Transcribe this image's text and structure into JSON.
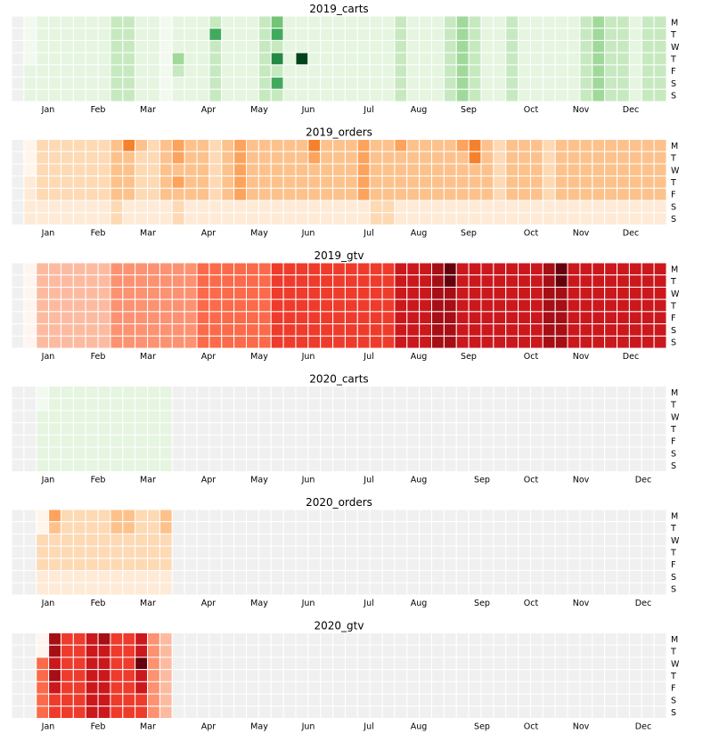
{
  "chart_data": [
    {
      "type": "heatmap",
      "title": "2019_carts",
      "palette": "Greens",
      "colors": [
        "#f2f9ef",
        "#e5f5e0",
        "#c7e9c0",
        "#a1d99b",
        "#74c476",
        "#41ab5d",
        "#238b45",
        "#00441b"
      ],
      "empty_color": "#f0f0f0",
      "x_tick_labels": [
        "Jan",
        "Feb",
        "Mar",
        "Apr",
        "May",
        "Jun",
        "Jul",
        "Aug",
        "Sep",
        "Oct",
        "Nov",
        "Dec"
      ],
      "y_tick_labels": [
        "M",
        "T",
        "W",
        "T",
        "F",
        "S",
        "S"
      ],
      "weeks": 53,
      "first_week_offset": 1,
      "available_weeks": 53,
      "levels_by_week": [
        "0000111",
        "1111111",
        "1111111",
        "1111111",
        "1111111",
        "1111111",
        "1111111",
        "2222222",
        "2222222",
        "1111111",
        "1111111",
        "0000000",
        "1113211",
        "1111111",
        "1111111",
        "2522222",
        "1111111",
        "1111111",
        "1111111",
        "2222222",
        "4526252",
        "1111111",
        "1117111",
        "1111111",
        "1111111",
        "1111111",
        "1111111",
        "1111111",
        "1111111",
        "1111111",
        "2222222",
        "1111111",
        "1111111",
        "1111111",
        "2222222",
        "3333333",
        "2222222",
        "1111111",
        "1111111",
        "2222222",
        "1111111",
        "1111111",
        "1111111",
        "1111111",
        "1111111",
        "2222222",
        "3333333",
        "2222222",
        "2222222",
        "1111111",
        "2222222",
        "2222222",
        "1111111"
      ]
    },
    {
      "type": "heatmap",
      "title": "2019_orders",
      "palette": "Oranges",
      "colors": [
        "#fff5eb",
        "#feead6",
        "#fdd9b4",
        "#fdc28c",
        "#fda35c",
        "#f6812d",
        "#e05810",
        "#a63603",
        "#7f2704"
      ],
      "empty_color": "#f0f0f0",
      "x_tick_labels": [
        "Jan",
        "Feb",
        "Mar",
        "Apr",
        "May",
        "Jun",
        "Jul",
        "Aug",
        "Sep",
        "Oct",
        "Nov",
        "Dec"
      ],
      "y_tick_labels": [
        "M",
        "T",
        "W",
        "T",
        "F",
        "S",
        "S"
      ],
      "weeks": 53,
      "first_week_offset": 1,
      "available_weeks": 53,
      "levels_by_week": [
        "0001111",
        "2222211",
        "2222211",
        "2222211",
        "2222211",
        "2222211",
        "2222211",
        "3333322",
        "5333311",
        "3222211",
        "2222211",
        "3333311",
        "4434322",
        "3333311",
        "3333311",
        "2222211",
        "3333311",
        "4444411",
        "3333311",
        "3333311",
        "3333311",
        "3333311",
        "3333311",
        "5433311",
        "3333311",
        "3333311",
        "3333311",
        "4444411",
        "3333322",
        "3333322",
        "4333311",
        "3333311",
        "3333311",
        "3333311",
        "3333311",
        "4333311",
        "5533311",
        "3333311",
        "2222211",
        "3333311",
        "3333311",
        "3333311",
        "2222211",
        "3333311",
        "3333311",
        "3333311",
        "3333311",
        "3333311",
        "3333311",
        "3333311",
        "3333311",
        "3333311",
        "3333311"
      ]
    },
    {
      "type": "heatmap",
      "title": "2019_gtv",
      "palette": "Reds",
      "colors": [
        "#fff5f0",
        "#fee0d2",
        "#fcbba1",
        "#fc9272",
        "#fb6a4a",
        "#ef3b2c",
        "#cb181d",
        "#a50f15",
        "#67000d"
      ],
      "empty_color": "#f0f0f0",
      "x_tick_labels": [
        "Jan",
        "Feb",
        "Mar",
        "Apr",
        "May",
        "Jun",
        "Jul",
        "Aug",
        "Sep",
        "Oct",
        "Nov",
        "Dec"
      ],
      "y_tick_labels": [
        "M",
        "T",
        "W",
        "T",
        "F",
        "S",
        "S"
      ],
      "weeks": 53,
      "first_week_offset": 1,
      "available_weeks": 53,
      "levels_by_week": [
        "0000000",
        "2222222",
        "2222222",
        "2222222",
        "2222222",
        "2222222",
        "2222222",
        "3333333",
        "3333333",
        "3333333",
        "3333333",
        "3333333",
        "3333333",
        "3333333",
        "4444444",
        "4444444",
        "4444444",
        "4444444",
        "4444444",
        "4444444",
        "5555555",
        "5555555",
        "5555555",
        "5555555",
        "5555555",
        "5555555",
        "5555555",
        "5555555",
        "5555555",
        "5555555",
        "6666666",
        "6666666",
        "6666666",
        "7777777",
        "8877777",
        "6666666",
        "6666666",
        "6666666",
        "6666666",
        "6666666",
        "6666666",
        "6666666",
        "7777777",
        "8877777",
        "6666666",
        "6666666",
        "6666666",
        "6666666",
        "6666666",
        "6666666",
        "6666666",
        "6666666",
        "6666666"
      ]
    },
    {
      "type": "heatmap",
      "title": "2020_carts",
      "palette": "Greens",
      "colors": [
        "#f2f9ef",
        "#e5f5e0",
        "#c7e9c0",
        "#a1d99b",
        "#74c476",
        "#41ab5d",
        "#238b45",
        "#00441b"
      ],
      "empty_color": "#f0f0f0",
      "x_tick_labels": [
        "Jan",
        "Feb",
        "Mar",
        "Apr",
        "May",
        "Jun",
        "Jul",
        "Aug",
        "Sep",
        "Oct",
        "Nov",
        "Dec"
      ],
      "y_tick_labels": [
        "M",
        "T",
        "W",
        "T",
        "F",
        "S",
        "S"
      ],
      "weeks": 53,
      "first_week_offset": 2,
      "available_weeks": 11,
      "levels_by_week": [
        "0011111",
        "1111111",
        "1111111",
        "1111111",
        "1111111",
        "1111111",
        "1111111",
        "1111111",
        "1111111",
        "1111111",
        "1111111"
      ]
    },
    {
      "type": "heatmap",
      "title": "2020_orders",
      "palette": "Oranges",
      "colors": [
        "#fff5eb",
        "#feead6",
        "#fdd9b4",
        "#fdc28c",
        "#fda35c",
        "#f6812d",
        "#e05810",
        "#a63603",
        "#7f2704"
      ],
      "empty_color": "#f0f0f0",
      "x_tick_labels": [
        "Jan",
        "Feb",
        "Mar",
        "Apr",
        "May",
        "Jun",
        "Jul",
        "Aug",
        "Sep",
        "Oct",
        "Nov",
        "Dec"
      ],
      "y_tick_labels": [
        "M",
        "T",
        "W",
        "T",
        "F",
        "S",
        "S"
      ],
      "weeks": 53,
      "first_week_offset": 2,
      "available_weeks": 11,
      "levels_by_week": [
        "0022211",
        "4322211",
        "2222211",
        "2222211",
        "2222211",
        "2222211",
        "3322211",
        "3322211",
        "2222211",
        "2222211",
        "3322211"
      ]
    },
    {
      "type": "heatmap",
      "title": "2020_gtv",
      "palette": "Reds",
      "colors": [
        "#fff5f0",
        "#fee0d2",
        "#fcbba1",
        "#fc9272",
        "#fb6a4a",
        "#ef3b2c",
        "#cb181d",
        "#a50f15",
        "#67000d"
      ],
      "empty_color": "#f0f0f0",
      "x_tick_labels": [
        "Jan",
        "Feb",
        "Mar",
        "Apr",
        "May",
        "Jun",
        "Jul",
        "Aug",
        "Sep",
        "Oct",
        "Nov",
        "Dec"
      ],
      "y_tick_labels": [
        "M",
        "T",
        "W",
        "T",
        "F",
        "S",
        "S"
      ],
      "weeks": 53,
      "first_week_offset": 2,
      "available_weeks": 11,
      "levels_by_week": [
        "0044444",
        "7767655",
        "5555555",
        "5555555",
        "6666666",
        "7666666",
        "5555555",
        "5555555",
        "6686655",
        "3333333",
        "2222222"
      ]
    }
  ]
}
